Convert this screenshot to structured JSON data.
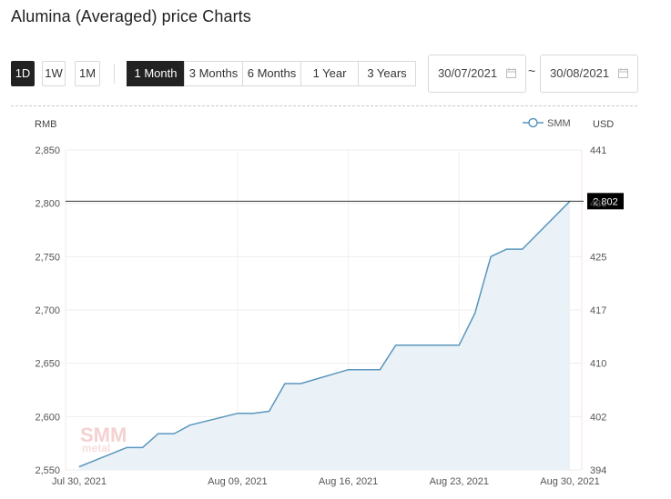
{
  "page": {
    "title": "Alumina (Averaged) price Charts"
  },
  "interval_buttons": [
    {
      "label": "1D",
      "active": true
    },
    {
      "label": "1W",
      "active": false
    },
    {
      "label": "1M",
      "active": false
    }
  ],
  "range_buttons": [
    {
      "label": "1 Month",
      "active": true
    },
    {
      "label": "3 Months",
      "active": false
    },
    {
      "label": "6 Months",
      "active": false
    },
    {
      "label": "1 Year",
      "active": false
    },
    {
      "label": "3 Years",
      "active": false
    }
  ],
  "date_range": {
    "start": "30/07/2021",
    "separator": "~",
    "end": "30/08/2021"
  },
  "watermark": {
    "text": "SMM",
    "subtext": "metal"
  },
  "colors": {
    "line": "#5a96bd",
    "fill": "#e9f1f6",
    "active_button": "#222222",
    "tooltip_bg": "#000000"
  },
  "chart_data": {
    "type": "area",
    "series": [
      {
        "name": "SMM",
        "x": [
          "2021-07-30",
          "2021-08-02",
          "2021-08-03",
          "2021-08-04",
          "2021-08-05",
          "2021-08-06",
          "2021-08-09",
          "2021-08-10",
          "2021-08-11",
          "2021-08-12",
          "2021-08-13",
          "2021-08-16",
          "2021-08-17",
          "2021-08-18",
          "2021-08-19",
          "2021-08-20",
          "2021-08-23",
          "2021-08-24",
          "2021-08-25",
          "2021-08-26",
          "2021-08-27",
          "2021-08-30"
        ],
        "values": [
          2553,
          2571,
          2571,
          2584,
          2584,
          2592,
          2603,
          2603,
          2605,
          2631,
          2631,
          2644,
          2644,
          2644,
          2667,
          2667,
          2667,
          2697,
          2750,
          2757,
          2757,
          2802
        ]
      }
    ],
    "left_axis": {
      "unit": "RMB",
      "ylim": [
        2550,
        2850
      ],
      "ticks": [
        "2,550",
        "2,600",
        "2,650",
        "2,700",
        "2,750",
        "2,800",
        "2,850"
      ]
    },
    "right_axis": {
      "unit": "USD",
      "ticks": [
        "394",
        "402",
        "410",
        "417",
        "425",
        "433",
        "441"
      ]
    },
    "x_ticks": [
      {
        "date": "2021-07-30",
        "label": "Jul 30, 2021"
      },
      {
        "date": "2021-08-09",
        "label": "Aug 09, 2021"
      },
      {
        "date": "2021-08-16",
        "label": "Aug 16, 2021"
      },
      {
        "date": "2021-08-23",
        "label": "Aug 23, 2021"
      },
      {
        "date": "2021-08-30",
        "label": "Aug 30, 2021"
      }
    ],
    "xlim": [
      "2021-07-30",
      "2021-08-30"
    ],
    "crosshair": {
      "value": 2802,
      "label": "2,802"
    },
    "legend": {
      "position": "top-right",
      "label": "SMM"
    },
    "grid": true
  }
}
